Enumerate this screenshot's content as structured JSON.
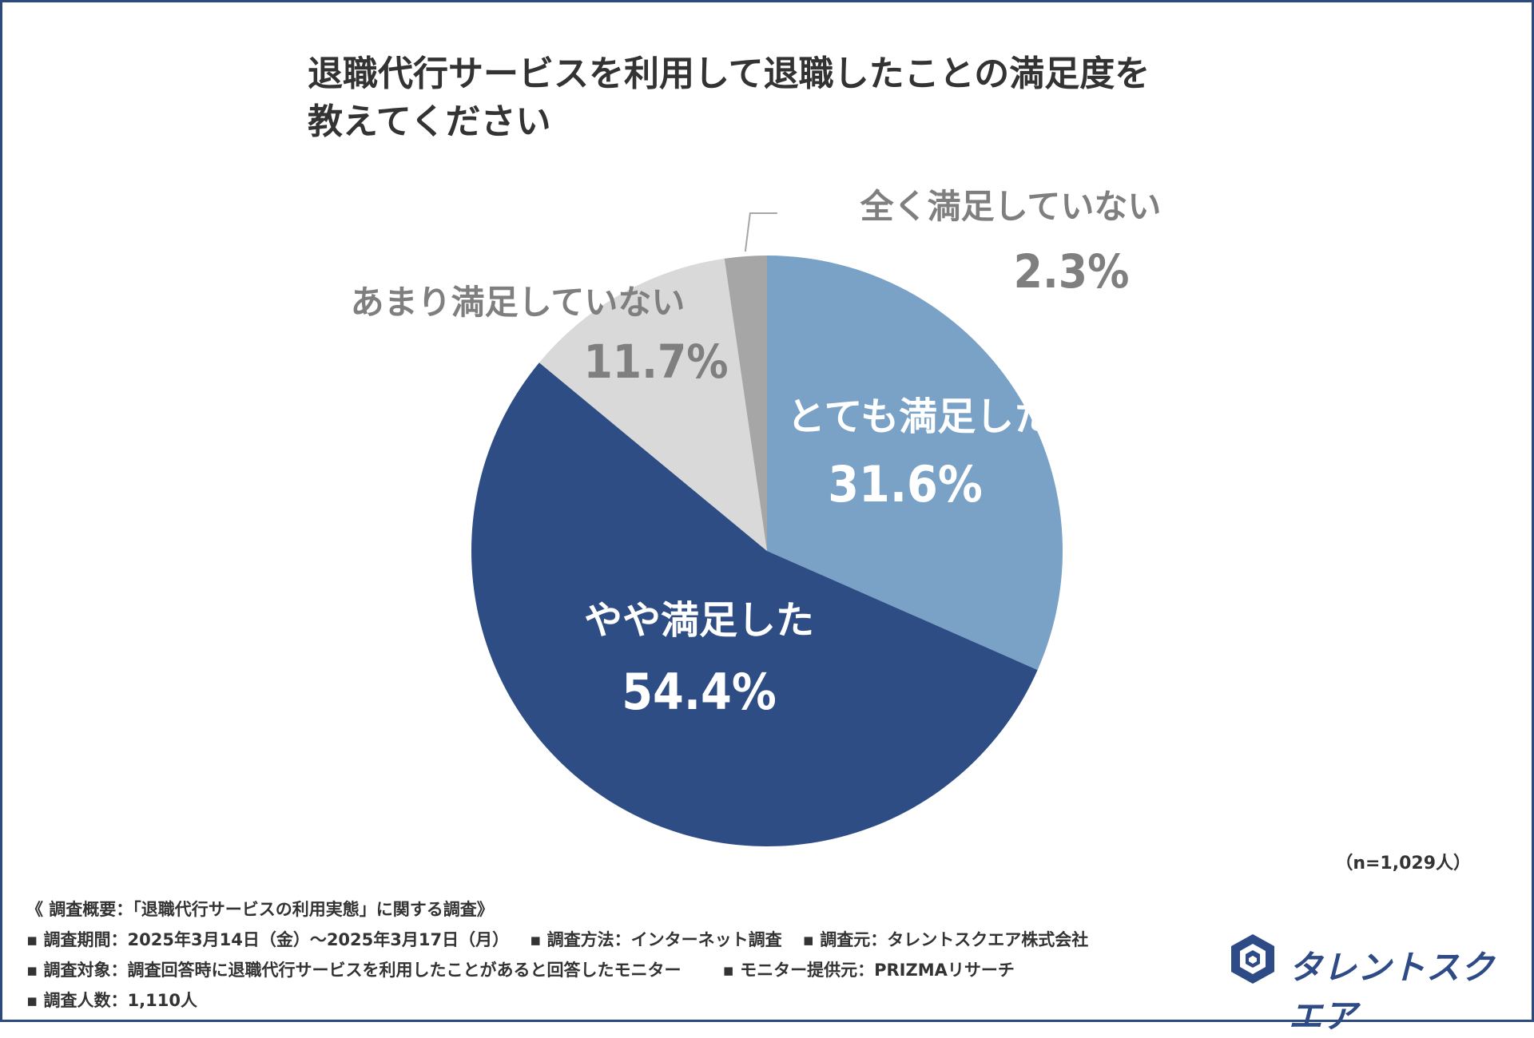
{
  "title": {
    "line1": "退職代行サービスを利用して退職したことの満足度を",
    "line2": "教えてください"
  },
  "chart_data": {
    "type": "pie",
    "title": "退職代行サービスを利用して退職したことの満足度を教えてください",
    "slices": [
      {
        "label": "とても満足した",
        "value": 31.6,
        "value_label": "31.6%",
        "color": "#7aa2c6",
        "text_color": "#ffffff"
      },
      {
        "label": "やや満足した",
        "value": 54.4,
        "value_label": "54.4%",
        "color": "#2e4d85",
        "text_color": "#ffffff"
      },
      {
        "label": "あまり満足していない",
        "value": 11.7,
        "value_label": "11.7%",
        "color": "#d9d9d9",
        "text_color": "#7f7f7f"
      },
      {
        "label": "全く満足していない",
        "value": 2.3,
        "value_label": "2.3%",
        "color": "#a6a6a6",
        "text_color": "#7f7f7f"
      }
    ],
    "start": "12 o'clock, clockwise",
    "n_label": "（n=1,029人）"
  },
  "survey": {
    "header": "《 調査概要：「退職代行サービスの利用実態」に関する調査》",
    "period": "▪ 調査期間：2025年3月14日（金）〜2025年3月17日（月）",
    "method": "▪ 調査方法：インターネット調査",
    "organizer": "▪ 調査元：タレントスクエア株式会社",
    "target": "▪ 調査対象：調査回答時に退職代行サービスを利用したことがあると回答したモニター",
    "provider": "▪ モニター提供元：PRIZMAリサーチ",
    "count": "▪ 調査人数：1,110人"
  },
  "logo": {
    "text": "タレントスクエア",
    "color": "#2e4b85"
  }
}
